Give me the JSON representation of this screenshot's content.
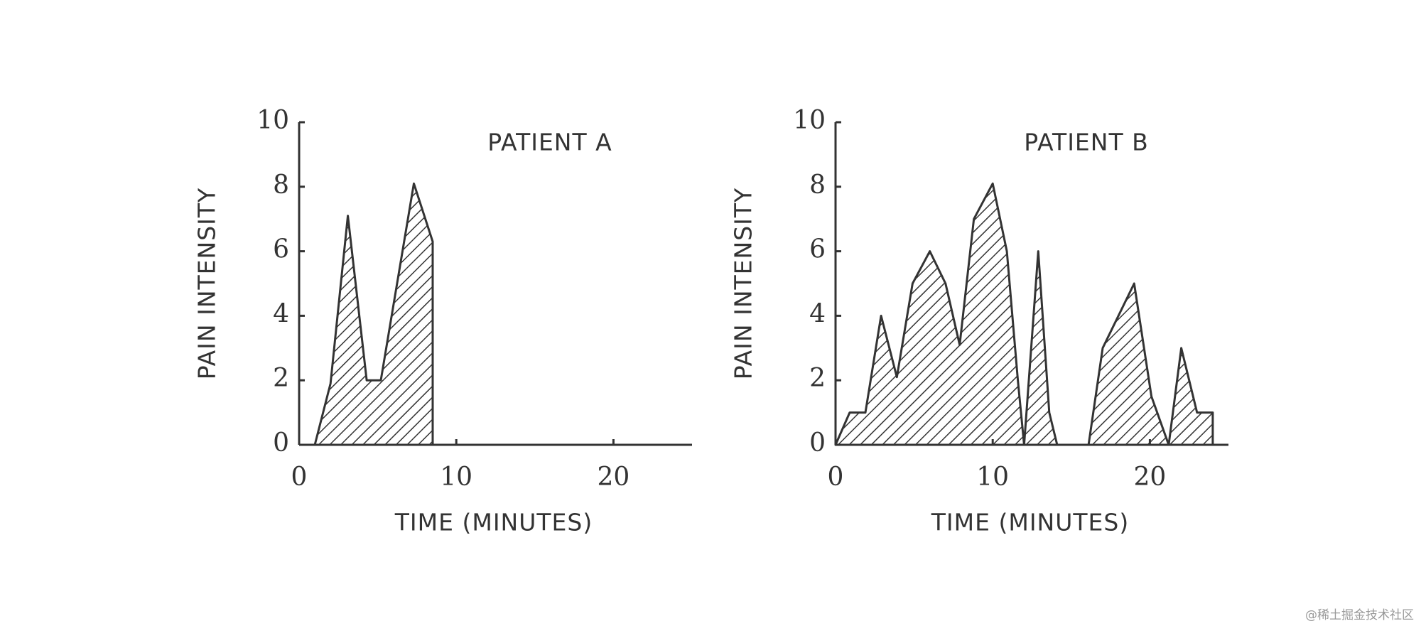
{
  "chart_data": [
    {
      "type": "area",
      "title": "PATIENT A",
      "x_label": "TIME (MINUTES)",
      "y_label": "PAIN INTENSITY",
      "x": [
        1,
        2,
        3.1,
        4.3,
        5.2,
        7.3,
        8.5,
        8.5
      ],
      "values": [
        0,
        1.9,
        7.1,
        2,
        2,
        8.1,
        6.3,
        0
      ],
      "color": "#333333",
      "xlim": [
        0,
        25
      ],
      "xticks": [
        0,
        10,
        20
      ],
      "ylim": [
        0,
        10
      ],
      "yticks": [
        0,
        2,
        4,
        6,
        8,
        10
      ],
      "grid": false
    },
    {
      "type": "area",
      "title": "PATIENT B",
      "x_label": "TIME (MINUTES)",
      "y_label": "PAIN INTENSITY",
      "x": [
        0,
        0.9,
        1.9,
        2.9,
        3.9,
        4.9,
        6,
        7,
        7.9,
        8.8,
        10,
        10.9,
        11.6,
        12,
        12.9,
        13.6,
        14.1,
        16.1,
        17,
        19,
        20.1,
        21.2,
        22,
        23,
        24,
        24
      ],
      "values": [
        0,
        1,
        1,
        4,
        2.1,
        5,
        6,
        5,
        3.1,
        7,
        8.1,
        6,
        2,
        0,
        6,
        1,
        0,
        0,
        3,
        5,
        1.5,
        0,
        3,
        1,
        1,
        0
      ],
      "color": "#333333",
      "xlim": [
        0,
        25
      ],
      "xticks": [
        0,
        10,
        20
      ],
      "ylim": [
        0,
        10
      ],
      "yticks": [
        0,
        2,
        4,
        6,
        8,
        10
      ],
      "grid": false
    }
  ],
  "watermark": "@稀土掘金技术社区"
}
